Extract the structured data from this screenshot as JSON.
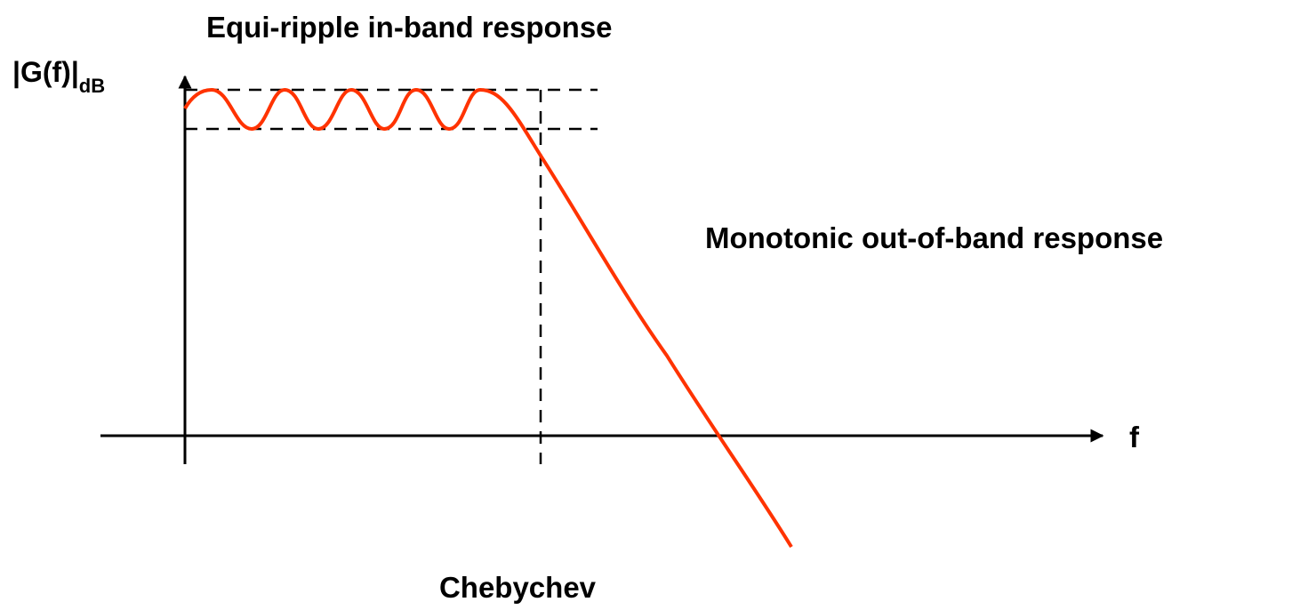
{
  "title": "Equi-ripple in-band response",
  "y_axis_label": {
    "text": "|G(f)|",
    "subscript": "dB"
  },
  "x_axis_label": "f",
  "annotation": "Monotonic out-of-band response",
  "caption": "Chebychev"
}
